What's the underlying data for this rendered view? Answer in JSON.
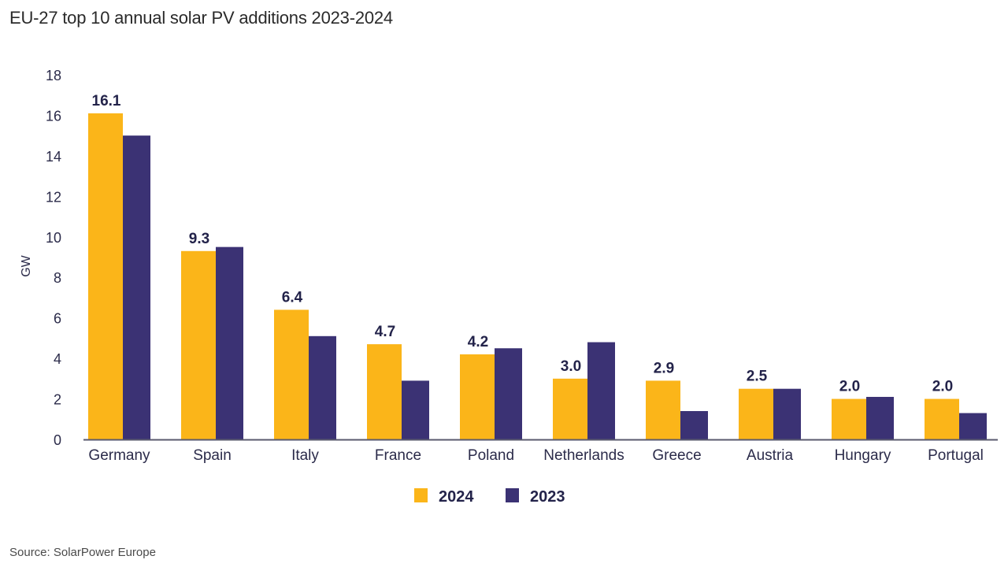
{
  "chart_data": {
    "type": "bar",
    "title": "EU-27 top 10 annual solar PV additions 2023-2024",
    "xlabel": "",
    "ylabel": "GW",
    "ylim": [
      0,
      18
    ],
    "yticks": [
      0,
      2,
      4,
      6,
      8,
      10,
      12,
      14,
      16,
      18
    ],
    "grid": false,
    "legend_position": "bottom-center",
    "categories": [
      "Germany",
      "Spain",
      "Italy",
      "France",
      "Poland",
      "Netherlands",
      "Greece",
      "Austria",
      "Hungary",
      "Portugal"
    ],
    "series": [
      {
        "name": "2024",
        "color": "#FBB519",
        "values": [
          16.1,
          9.3,
          6.4,
          4.7,
          4.2,
          3.0,
          2.9,
          2.5,
          2.0,
          2.0
        ]
      },
      {
        "name": "2023",
        "color": "#3B3274",
        "values": [
          15.0,
          9.5,
          5.1,
          2.9,
          4.5,
          4.8,
          1.4,
          2.5,
          2.1,
          1.3
        ]
      }
    ],
    "data_labels": [
      "16.1",
      "9.3",
      "6.4",
      "4.7",
      "4.2",
      "3.0",
      "2.9",
      "2.5",
      "2.0",
      "2.0"
    ],
    "source": "Source: SolarPower Europe"
  }
}
